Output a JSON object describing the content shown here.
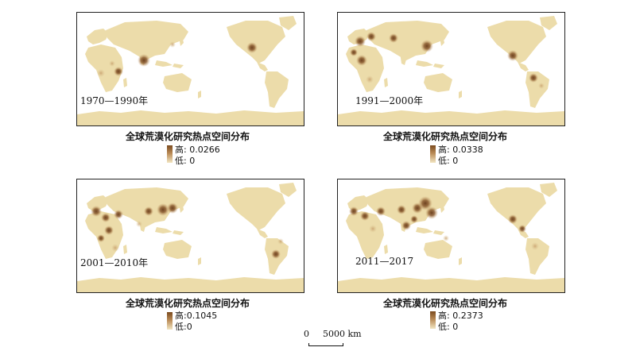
{
  "panels": [
    {
      "period": "1970—1990年",
      "legend_title": "全球荒漠化研究热点空间分布",
      "legend_high": "高: 0.0266",
      "legend_low": "低: 0"
    },
    {
      "period": "1991—2000年",
      "legend_title": "全球荒漠化研究热点空间分布",
      "legend_high": "高: 0.0338",
      "legend_low": "低: 0"
    },
    {
      "period": "2001—2010年",
      "legend_title": "全球荒漠化研究热点空间分布",
      "legend_high": "高:0.1045",
      "legend_low": "低:0"
    },
    {
      "period": "2011—2017",
      "legend_title": "全球荒漠化研究热点空间分布",
      "legend_high": "高: 0.2373",
      "legend_low": "低: 0"
    }
  ],
  "scale_bar": {
    "zero": "0",
    "label": "5000 km"
  },
  "colors": {
    "land": "#ecdcaa",
    "hotspot_high": "#6e4220",
    "hotspot_mid": "#b98a55",
    "ice": "#f4efe0"
  }
}
